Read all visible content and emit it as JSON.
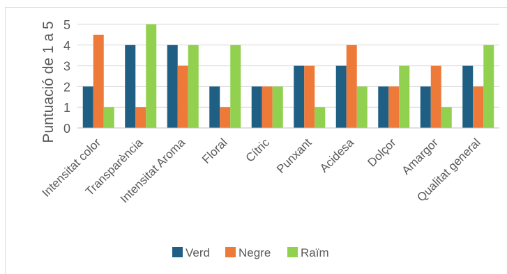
{
  "chart_data": {
    "type": "bar",
    "categories": [
      "Intensitat color",
      "Transparència",
      "Intensitat Aroma",
      "Floral",
      "Cítric",
      "Punxant",
      "Acidesa",
      "Dolçor",
      "Amargor",
      "Qualitat general"
    ],
    "series": [
      {
        "name": "Verd",
        "color": "#1f5f84",
        "values": [
          2,
          4,
          4,
          2,
          2,
          3,
          3,
          2,
          2,
          3
        ]
      },
      {
        "name": "Negre",
        "color": "#ee7a3a",
        "values": [
          4.5,
          1,
          3,
          1,
          2,
          3,
          4,
          2,
          3,
          2
        ]
      },
      {
        "name": "Raïm",
        "color": "#92d050",
        "values": [
          1,
          5,
          4,
          4,
          2,
          1,
          2,
          3,
          1,
          4
        ]
      }
    ],
    "ylabel": "Puntuació de 1 a 5",
    "xlabel": "",
    "ylim": [
      0,
      5
    ],
    "yticks": [
      "0",
      "1",
      "2",
      "3",
      "4",
      "5"
    ],
    "grid": true,
    "legend_position": "bottom"
  }
}
